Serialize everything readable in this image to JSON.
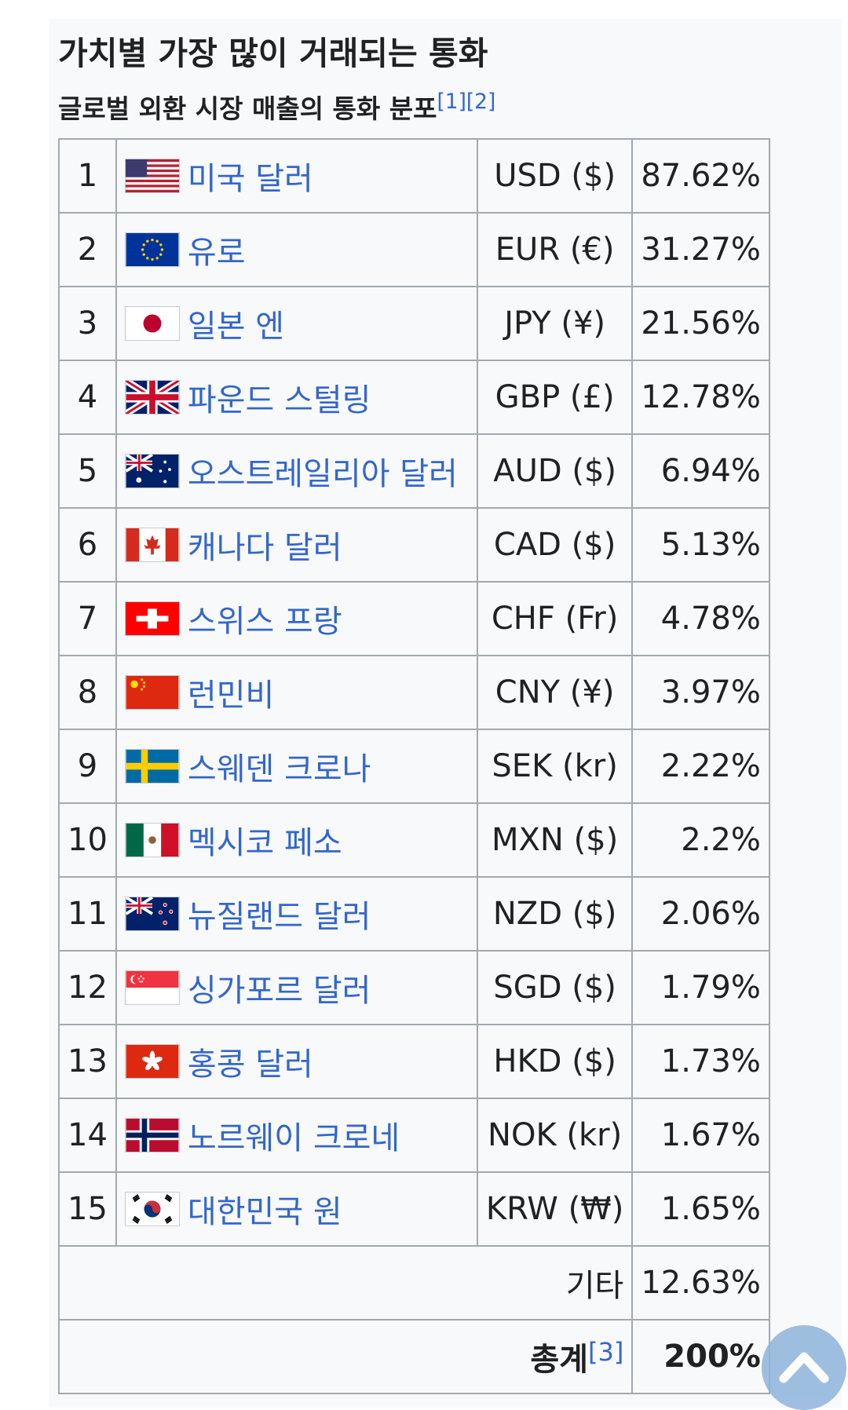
{
  "title": "가치별 가장 많이 거래되는 통화",
  "subtitle": "글로벌 외환 시장 매출의 통화 분포",
  "subtitle_refs": [
    "[1]",
    "[2]"
  ],
  "rows": [
    {
      "rank": "1",
      "name": "미국 달러",
      "code": "USD ($)",
      "share": "87.62%",
      "flag": "flag-usa-icon"
    },
    {
      "rank": "2",
      "name": "유로",
      "code": "EUR (€)",
      "share": "31.27%",
      "flag": "flag-eu-icon"
    },
    {
      "rank": "3",
      "name": "일본 엔",
      "code": "JPY (¥)",
      "share": "21.56%",
      "flag": "flag-japan-icon"
    },
    {
      "rank": "4",
      "name": "파운드 스털링",
      "code": "GBP (£)",
      "share": "12.78%",
      "flag": "flag-uk-icon"
    },
    {
      "rank": "5",
      "name": "오스트레일리아 달러",
      "code": "AUD ($)",
      "share": "6.94%",
      "flag": "flag-australia-icon"
    },
    {
      "rank": "6",
      "name": "캐나다 달러",
      "code": "CAD ($)",
      "share": "5.13%",
      "flag": "flag-canada-icon"
    },
    {
      "rank": "7",
      "name": "스위스 프랑",
      "code": "CHF (Fr)",
      "share": "4.78%",
      "flag": "flag-switzerland-icon"
    },
    {
      "rank": "8",
      "name": "런민비",
      "code": "CNY (¥)",
      "share": "3.97%",
      "flag": "flag-china-icon"
    },
    {
      "rank": "9",
      "name": "스웨덴 크로나",
      "code": "SEK (kr)",
      "share": "2.22%",
      "flag": "flag-sweden-icon"
    },
    {
      "rank": "10",
      "name": "멕시코 페소",
      "code": "MXN ($)",
      "share": "2.2%",
      "flag": "flag-mexico-icon"
    },
    {
      "rank": "11",
      "name": "뉴질랜드 달러",
      "code": "NZD ($)",
      "share": "2.06%",
      "flag": "flag-new-zealand-icon"
    },
    {
      "rank": "12",
      "name": "싱가포르 달러",
      "code": "SGD ($)",
      "share": "1.79%",
      "flag": "flag-singapore-icon"
    },
    {
      "rank": "13",
      "name": "홍콩 달러",
      "code": "HKD ($)",
      "share": "1.73%",
      "flag": "flag-hong-kong-icon"
    },
    {
      "rank": "14",
      "name": "노르웨이 크로네",
      "code": "NOK (kr)",
      "share": "1.67%",
      "flag": "flag-norway-icon"
    },
    {
      "rank": "15",
      "name": "대한민국 원",
      "code": "KRW (₩)",
      "share": "1.65%",
      "flag": "flag-south-korea-icon"
    }
  ],
  "other": {
    "label": "기타",
    "share": "12.63%"
  },
  "total": {
    "label": "총계",
    "ref": "[3]",
    "share": "200%"
  },
  "colors": {
    "link": "#3366cc",
    "border": "#a2a9b1",
    "table_bg": "#f8f9fa",
    "scroll_button": "#8fb4dc"
  },
  "scroll_top_icon": "chevron-up-icon"
}
